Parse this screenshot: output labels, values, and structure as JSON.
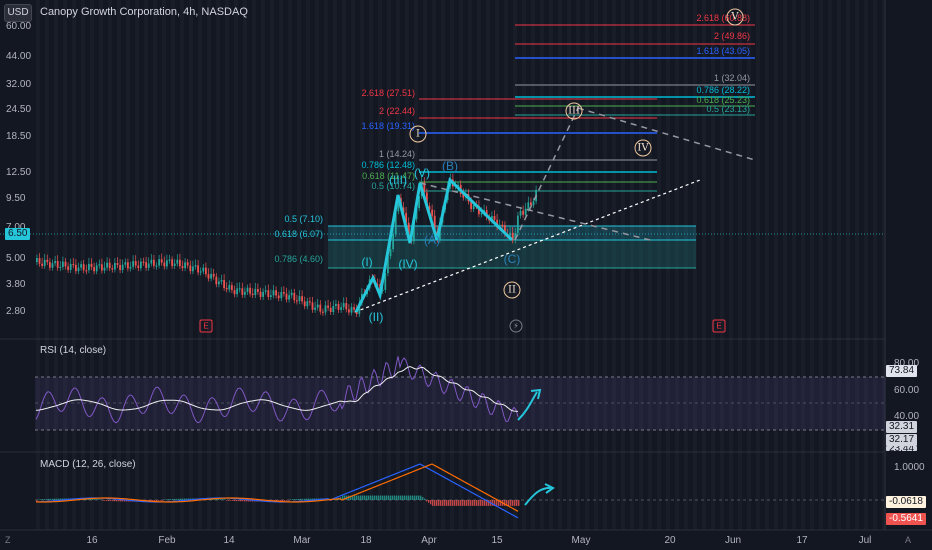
{
  "toolbar": {
    "currency": "USD"
  },
  "symbol": {
    "title": "Canopy Growth Corporation, 4h, NASDAQ"
  },
  "price_axis_left": [
    "60.00",
    "44.00",
    "32.00",
    "24.50",
    "18.50",
    "12.50",
    "9.50",
    "7.00",
    "5.00",
    "3.80",
    "2.80"
  ],
  "current_price": "6.50",
  "rsi": {
    "label": "RSI (14, close)",
    "axis": [
      "80.00",
      "60.00",
      "40.00"
    ],
    "tags": [
      "73.84",
      "32.31",
      "32.17",
      "23.44"
    ]
  },
  "macd": {
    "label": "MACD (12, 26, close)",
    "axis": [
      "1.0000"
    ],
    "tags": [
      "-0.0618",
      "-0.5641"
    ]
  },
  "time_axis": [
    "16",
    "Feb",
    "14",
    "Mar",
    "18",
    "Apr",
    "15",
    "May",
    "20",
    "Jun",
    "17",
    "Jul"
  ],
  "fib_upper": [
    {
      "text": "2.618 (60.88)",
      "color": "#f23645"
    },
    {
      "text": "2 (49.86)",
      "color": "#f23645"
    },
    {
      "text": "1.618 (43.05)",
      "color": "#2962ff"
    },
    {
      "text": "1 (32.04)",
      "color": "#9598a1"
    },
    {
      "text": "0.786 (28.22)",
      "color": "#00bcd4"
    },
    {
      "text": "0.618 (25.23)",
      "color": "#4caf50"
    },
    {
      "text": "0.5 (23.13)",
      "color": "#26a69a"
    }
  ],
  "fib_mid": [
    {
      "text": "2.618 (27.51)",
      "color": "#f23645"
    },
    {
      "text": "2 (22.44)",
      "color": "#f23645"
    },
    {
      "text": "1.618 (19.31)",
      "color": "#2962ff"
    },
    {
      "text": "1 (14.24)",
      "color": "#9598a1"
    },
    {
      "text": "0.786 (12.48)",
      "color": "#00bcd4"
    },
    {
      "text": "0.618 (11.47)",
      "color": "#4caf50"
    },
    {
      "text": "0.5 (10.74)",
      "color": "#26a69a"
    }
  ],
  "fib_lower": [
    {
      "text": "0.5 (7.10)",
      "color": "#26c6da"
    },
    {
      "text": "0.618 (6.07)",
      "color": "#26c6da"
    },
    {
      "text": "0.786 (4.60)",
      "color": "#26a69a"
    }
  ],
  "waves_minor": [
    "(I)",
    "(II)",
    "(III)",
    "(IV)",
    "(V)",
    "(A)",
    "(B)",
    "(C)"
  ],
  "waves_major": [
    "I",
    "II",
    "III",
    "IV",
    "V"
  ],
  "event_marks": [
    "E",
    "E"
  ],
  "corner_labels": {
    "left": "Z",
    "right": "A"
  },
  "colors": {
    "background": "#131722",
    "up": "#26a69a",
    "down": "#ef5350",
    "wave": "#26c6da",
    "rsi": "#7e57c2",
    "macd_line": "#2962ff",
    "signal_line": "#ff6d00"
  }
}
